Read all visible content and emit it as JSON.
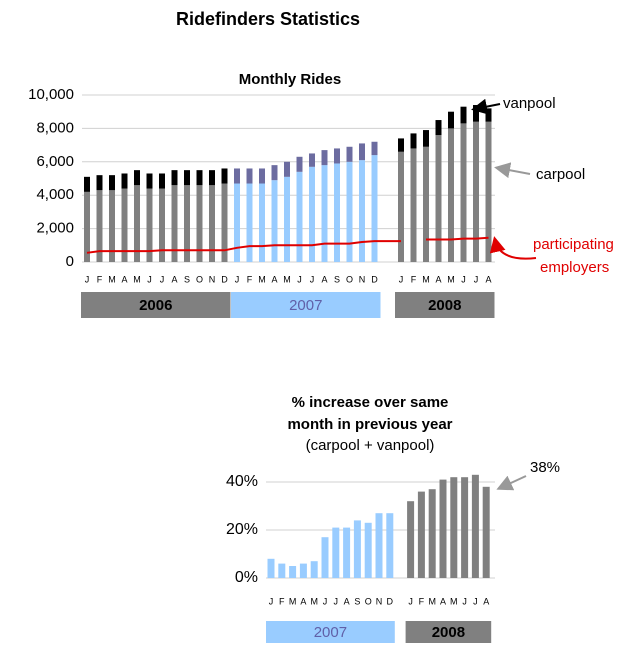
{
  "title": "Ridefinders Statistics",
  "chart_data": [
    {
      "type": "stacked-bar",
      "title": "Monthly Rides",
      "ylim": [
        0,
        10000
      ],
      "yticks": [
        0,
        {
          "value": 2000,
          "label": "2,000"
        },
        {
          "value": 4000,
          "label": "4,000"
        },
        {
          "value": 6000,
          "label": "6,000"
        },
        {
          "value": 8000,
          "label": "8,000"
        },
        {
          "value": 10000,
          "label": "10,000"
        }
      ],
      "grid": true,
      "line_color": "#e00000",
      "annotations": {
        "vanpool": "vanpool",
        "carpool": "carpool",
        "employers": [
          "participating",
          "employers"
        ]
      },
      "years": [
        {
          "label": "2006",
          "box_color": "#808080",
          "label_color": "#000000",
          "carpool_color": "#808080",
          "vanpool_color": "#000000",
          "months": [
            "J",
            "F",
            "M",
            "A",
            "M",
            "J",
            "J",
            "A",
            "S",
            "O",
            "N",
            "D"
          ],
          "carpool": [
            4200,
            4300,
            4300,
            4400,
            4600,
            4400,
            4400,
            4600,
            4600,
            4600,
            4600,
            4700
          ],
          "vanpool": [
            900,
            900,
            900,
            900,
            900,
            900,
            900,
            900,
            900,
            900,
            900,
            900
          ],
          "employers": [
            550,
            650,
            650,
            650,
            650,
            650,
            700,
            700,
            700,
            700,
            700,
            700
          ]
        },
        {
          "label": "2007",
          "box_color": "#99ccff",
          "label_color": "#6060a8",
          "carpool_color": "#99ccff",
          "vanpool_color": "#6c6ca0",
          "months": [
            "J",
            "F",
            "M",
            "A",
            "M",
            "J",
            "J",
            "A",
            "S",
            "O",
            "N",
            "D"
          ],
          "carpool": [
            4700,
            4700,
            4700,
            4900,
            5100,
            5400,
            5700,
            5800,
            5900,
            6000,
            6100,
            6400
          ],
          "vanpool": [
            900,
            900,
            900,
            900,
            900,
            900,
            800,
            900,
            900,
            900,
            1000,
            800
          ],
          "employers": [
            850,
            950,
            950,
            1000,
            1000,
            1000,
            1000,
            1100,
            1100,
            1100,
            1200,
            1250
          ]
        },
        {
          "label": "2008",
          "box_color": "#808080",
          "label_color": "#000000",
          "carpool_color": "#808080",
          "vanpool_color": "#000000",
          "months": [
            "J",
            "F",
            "M",
            "A",
            "M",
            "J",
            "J",
            "A"
          ],
          "carpool": [
            6600,
            6800,
            6900,
            7600,
            8000,
            8300,
            8400,
            8400
          ],
          "vanpool": [
            800,
            900,
            1000,
            900,
            1000,
            1000,
            1000,
            800
          ],
          "employers": [
            1250,
            null,
            1350,
            1350,
            1350,
            1400,
            1400,
            1450
          ]
        }
      ]
    },
    {
      "type": "bar",
      "title": [
        "% increase over same",
        "month in previous year"
      ],
      "subtitle": "(carpool + vanpool)",
      "ylim": [
        0,
        50
      ],
      "yticks": [
        {
          "value": 0,
          "label": "0%"
        },
        {
          "value": 20,
          "label": "20%"
        },
        {
          "value": 40,
          "label": "40%"
        }
      ],
      "grid": true,
      "annotation": "38%",
      "years": [
        {
          "label": "2007",
          "box_color": "#99ccff",
          "label_color": "#6060a8",
          "color": "#99ccff",
          "months": [
            "J",
            "F",
            "M",
            "A",
            "M",
            "J",
            "J",
            "A",
            "S",
            "O",
            "N",
            "D"
          ],
          "values": [
            8,
            6,
            5,
            6,
            7,
            17,
            21,
            21,
            24,
            23,
            27,
            27
          ]
        },
        {
          "label": "2008",
          "box_color": "#808080",
          "label_color": "#000000",
          "color": "#808080",
          "months": [
            "J",
            "F",
            "M",
            "A",
            "M",
            "J",
            "J",
            "A"
          ],
          "values": [
            32,
            36,
            37,
            41,
            42,
            42,
            43,
            38
          ]
        }
      ]
    }
  ]
}
